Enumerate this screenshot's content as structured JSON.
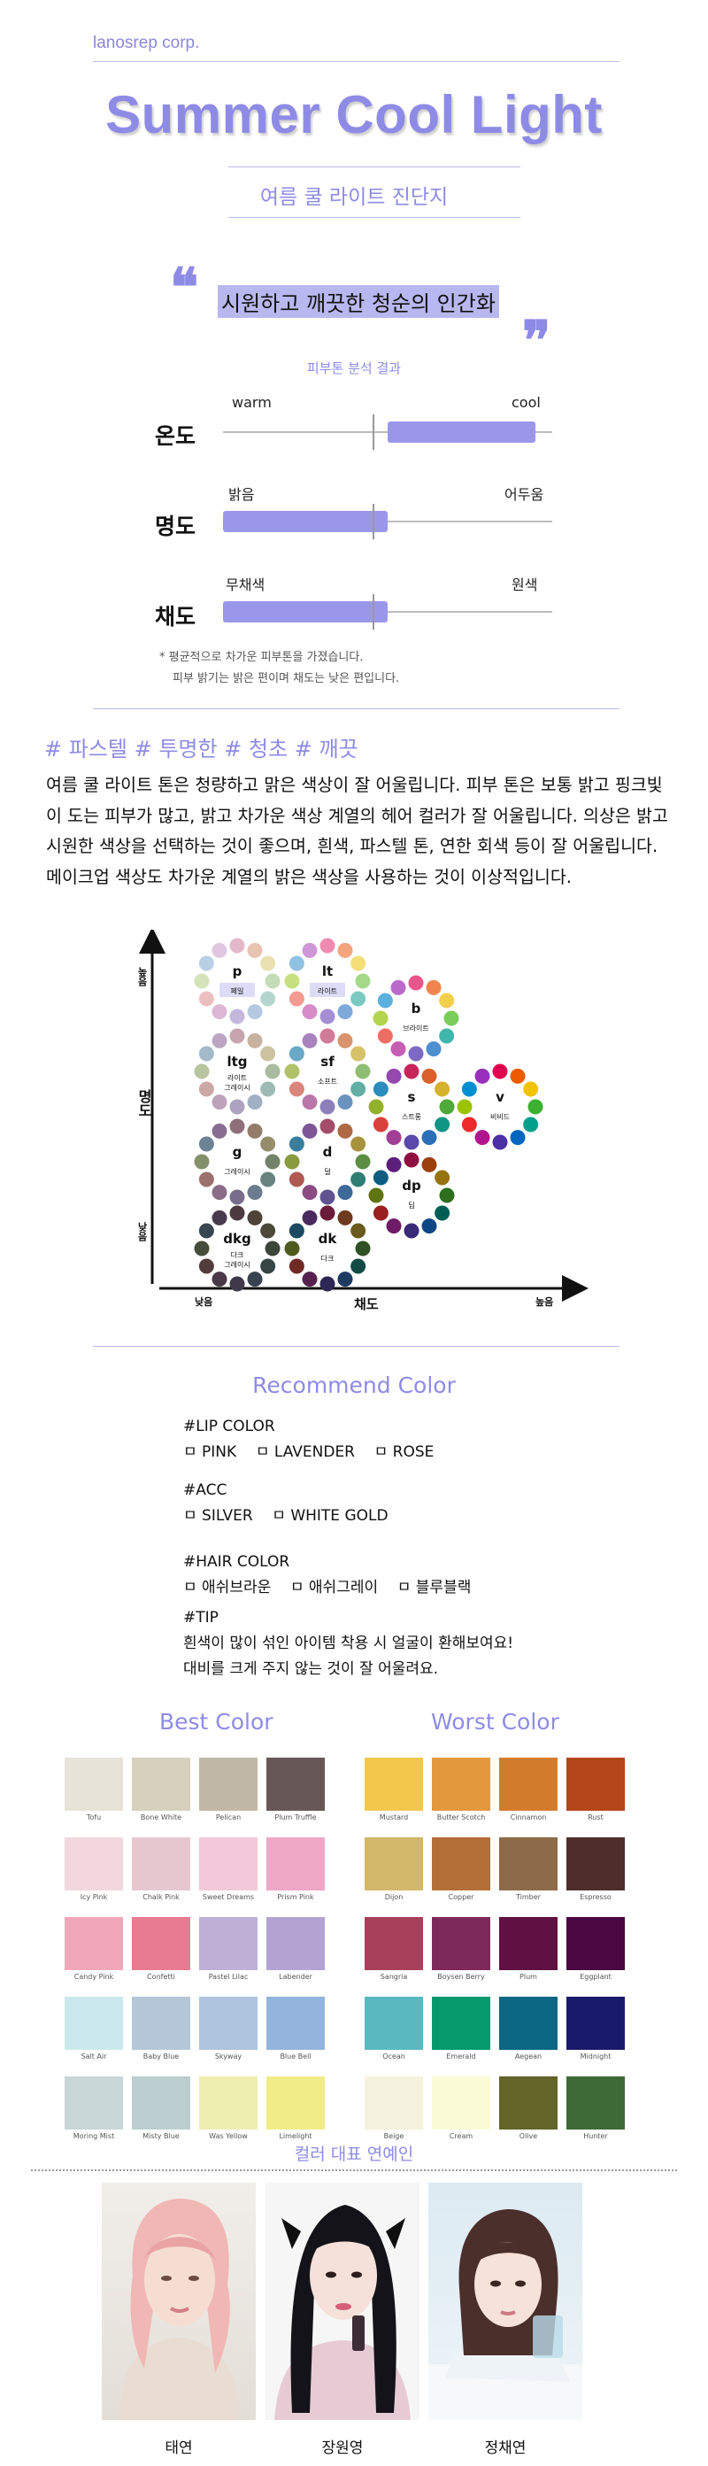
{
  "header": {
    "brand": "lanosrep corp.",
    "title": "Summer Cool Light",
    "subtitle": "여름 쿨 라이트 진단지"
  },
  "quote": {
    "text": "시원하고 깨끗한 청순의 인간화",
    "open_mark": "❝",
    "close_mark": "❞"
  },
  "analysis": {
    "label": "피부톤 분석 결과",
    "scales": [
      {
        "name": "온도",
        "left": "warm",
        "right": "cool",
        "fill_from": 0.5,
        "fill_to": 0.95
      },
      {
        "name": "명도",
        "left": "밝음",
        "right": "어두움",
        "fill_from": 0.0,
        "fill_to": 0.5
      },
      {
        "name": "채도",
        "left": "무채색",
        "right": "원색",
        "fill_from": 0.0,
        "fill_to": 0.5
      }
    ],
    "notes": [
      "* 평균적으로 차가운 피부톤을 가졌습니다.",
      "피부 밝기는 밝은 편이며 채도는 낮은 편입니다."
    ]
  },
  "tags": "# 파스텔 # 투명한 # 청초 # 깨끗",
  "description": "여름 쿨 라이트 톤은 청량하고 맑은 색상이 잘 어울립니다. 피부 톤은 보통 밝고 핑크빛이 도는 피부가 많고, 밝고 차가운 색상 계열의 헤어 컬러가 잘 어울립니다. 의상은 밝고 시원한 색상을 선택하는 것이 좋으며, 흰색, 파스텔 톤, 연한 회색 등이 잘 어울립니다. 메이크업 색상도 차가운 계열의 밝은 색상을 사용하는 것이 이상적입니다.",
  "tone_chart": {
    "y_axis": {
      "label": "명도",
      "high": "높음",
      "low": "낮음"
    },
    "x_axis": {
      "label": "채도",
      "low": "낮음",
      "high": "높음"
    },
    "tones": [
      {
        "code": "p",
        "name": "페일",
        "highlight": true
      },
      {
        "code": "lt",
        "name": "라이트",
        "highlight": true
      },
      {
        "code": "b",
        "name": "브라이트"
      },
      {
        "code": "ltg",
        "name": "라이트 그레이시"
      },
      {
        "code": "sf",
        "name": "소프트"
      },
      {
        "code": "s",
        "name": "스트롱"
      },
      {
        "code": "v",
        "name": "비비드"
      },
      {
        "code": "g",
        "name": "그레이시"
      },
      {
        "code": "d",
        "name": "덜"
      },
      {
        "code": "dp",
        "name": "딥"
      },
      {
        "code": "dkg",
        "name": "다크 그레이시"
      },
      {
        "code": "dk",
        "name": "다크"
      }
    ]
  },
  "recommend": {
    "title": "Recommend Color",
    "lip": {
      "heading": "#LIP COLOR",
      "items": [
        "PINK",
        "LAVENDER",
        "ROSE"
      ]
    },
    "acc": {
      "heading": "#ACC",
      "items": [
        "SILVER",
        "WHITE GOLD"
      ]
    },
    "hair": {
      "heading": "#HAIR COLOR",
      "items": [
        "애쉬브라운",
        "애쉬그레이",
        "블루블랙"
      ]
    },
    "tip": {
      "heading": "#TIP",
      "lines": [
        "흰색이 많이 섞인 아이템 착용 시 얼굴이 환해보여요!",
        "대비를 크게 주지 않는 것이 잘 어울려요."
      ]
    },
    "checkbox": "ㅁ"
  },
  "best": {
    "title": "Best Color",
    "colors": [
      {
        "name": "Tofu",
        "hex": "#e8e3d9"
      },
      {
        "name": "Bone White",
        "hex": "#d8d0bf"
      },
      {
        "name": "Pelican",
        "hex": "#c1b8a8"
      },
      {
        "name": "Plum Truffle",
        "hex": "#675857"
      },
      {
        "name": "Icy Pink",
        "hex": "#f2d7de"
      },
      {
        "name": "Chalk Pink",
        "hex": "#e7c7cf"
      },
      {
        "name": "Sweet Dreams",
        "hex": "#f1c9d8"
      },
      {
        "name": "Prism Pink",
        "hex": "#efa7c6"
      },
      {
        "name": "Candy Pink",
        "hex": "#f1a7b9"
      },
      {
        "name": "Confetti",
        "hex": "#e67b92"
      },
      {
        "name": "Pastel Lilac",
        "hex": "#bfb0d6"
      },
      {
        "name": "Labender",
        "hex": "#b3a3d3"
      },
      {
        "name": "Salt Air",
        "hex": "#cbe9ec"
      },
      {
        "name": "Baby Blue",
        "hex": "#b4c6d8"
      },
      {
        "name": "Skyway",
        "hex": "#aec4dc"
      },
      {
        "name": "Blue Bell",
        "hex": "#93b4dc"
      },
      {
        "name": "Moring Mist",
        "hex": "#c9d6d7"
      },
      {
        "name": "Misty Blue",
        "hex": "#bccecf"
      },
      {
        "name": "Was Yellow",
        "hex": "#efeeb1"
      },
      {
        "name": "Limelight",
        "hex": "#f0ec88"
      }
    ]
  },
  "worst": {
    "title": "Worst Color",
    "colors": [
      {
        "name": "Mustard",
        "hex": "#f1c74c"
      },
      {
        "name": "Butter Scotch",
        "hex": "#e4983d"
      },
      {
        "name": "Cinnamon",
        "hex": "#d47c2d"
      },
      {
        "name": "Rust",
        "hex": "#b4461a"
      },
      {
        "name": "Dijon",
        "hex": "#d3b76a"
      },
      {
        "name": "Copper",
        "hex": "#b46f38"
      },
      {
        "name": "Timber",
        "hex": "#8d6a48"
      },
      {
        "name": "Espresso",
        "hex": "#4e2e2c"
      },
      {
        "name": "Sangria",
        "hex": "#a8405b"
      },
      {
        "name": "Boysen Berry",
        "hex": "#7d2a5a"
      },
      {
        "name": "Plum",
        "hex": "#611043"
      },
      {
        "name": "Eggplant",
        "hex": "#4a0741"
      },
      {
        "name": "Ocean",
        "hex": "#5ab8c0"
      },
      {
        "name": "Emerald",
        "hex": "#05996c"
      },
      {
        "name": "Aegean",
        "hex": "#0b6683"
      },
      {
        "name": "Midnight",
        "hex": "#1a1a6c"
      },
      {
        "name": "Beige",
        "hex": "#f5f2dd"
      },
      {
        "name": "Cream",
        "hex": "#fbfbd8"
      },
      {
        "name": "Olive",
        "hex": "#626428"
      },
      {
        "name": "Hunter",
        "hex": "#3e6a37"
      }
    ]
  },
  "celebrities": {
    "title": "컬러 대표 연예인",
    "people": [
      {
        "name": "태연"
      },
      {
        "name": "장원영"
      },
      {
        "name": "정채연"
      }
    ]
  },
  "colors": {
    "accent": "#8e8be6",
    "bar": "#9a97ea"
  }
}
